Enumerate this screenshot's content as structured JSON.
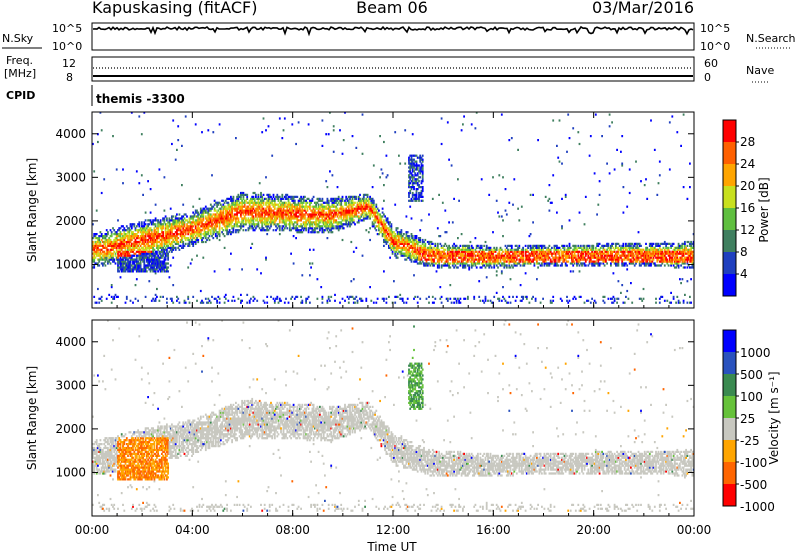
{
  "header": {
    "title_left": "Kapuskasing (fitACF)",
    "title_center": "Beam 06",
    "title_right": "03/Mar/2016"
  },
  "status_panels": {
    "nsky": {
      "label": "N.Sky",
      "left_ticks": [
        "10^5",
        "10^0"
      ]
    },
    "nsearch": {
      "label": "N.Search",
      "right_ticks": [
        "10^5",
        "10^0"
      ]
    },
    "freq": {
      "label_line1": "Freq.",
      "label_line2": "[MHz]",
      "left_ticks": [
        "12",
        "8"
      ]
    },
    "nave": {
      "label": "Nave",
      "right_ticks": [
        "60",
        "0"
      ]
    },
    "cpid": {
      "label": "CPID",
      "program": "themis -3300"
    }
  },
  "colors": {
    "power_scale": [
      "#0000ff",
      "#1f3fbf",
      "#3f7f5f",
      "#5fbf3f",
      "#c8e01e",
      "#ffa500",
      "#ff6000",
      "#ff0000"
    ],
    "velocity_scale": [
      "#0000ff",
      "#2a52be",
      "#3a8a50",
      "#66c23a",
      "#c8c8c0",
      "#ffa500",
      "#ff6500",
      "#ff0000"
    ],
    "ground_scatter": "#c8c8c0"
  },
  "chart_data": [
    {
      "type": "heatmap",
      "name": "power-panel",
      "ylabel": "Slant Range [km]",
      "ylim": [
        0,
        4500
      ],
      "xlim": [
        0,
        24
      ],
      "x_ticks": [
        0,
        4,
        8,
        12,
        16,
        20,
        24
      ],
      "y_ticks": [
        1000,
        2000,
        3000,
        4000
      ],
      "y_tick_labels": [
        "1000",
        "2000",
        "3000",
        "4000"
      ],
      "colorbar": {
        "label": "Power [dB]",
        "ticks": [
          "4",
          "8",
          "12",
          "16",
          "20",
          "24",
          "28"
        ]
      },
      "bands": [
        {
          "x": [
            0.0,
            2.5,
            4.0,
            6.0,
            9.5,
            11.0,
            12.0,
            13.5,
            16.0,
            20.0,
            24.0
          ],
          "center": [
            1300,
            1600,
            1800,
            2200,
            2100,
            2300,
            1500,
            1200,
            1150,
            1200,
            1200
          ],
          "width": [
            400,
            450,
            400,
            450,
            400,
            300,
            350,
            300,
            250,
            250,
            300
          ]
        }
      ]
    },
    {
      "type": "heatmap",
      "name": "velocity-panel",
      "ylabel": "Slant Range [km]",
      "ylim": [
        0,
        4500
      ],
      "xlim": [
        0,
        24
      ],
      "x_ticks": [
        0,
        4,
        8,
        12,
        16,
        20,
        24
      ],
      "y_ticks": [
        1000,
        2000,
        3000,
        4000
      ],
      "y_tick_labels": [
        "1000",
        "2000",
        "3000",
        "4000"
      ],
      "x_tick_labels": [
        "00:00",
        "04:00",
        "08:00",
        "12:00",
        "16:00",
        "20:00",
        "00:00"
      ],
      "xlabel": "Time UT",
      "colorbar": {
        "label": "Velocity [m s⁻¹]",
        "ticks": [
          "1000",
          "500",
          "100",
          "25",
          "-25",
          "-100",
          "-500",
          "-1000"
        ]
      }
    }
  ]
}
